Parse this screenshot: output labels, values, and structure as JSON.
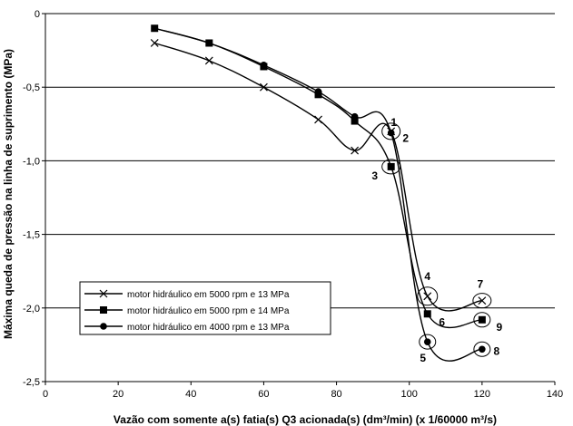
{
  "chart_data": {
    "type": "line",
    "title": "",
    "xlabel": "Vazão com somente a(s) fatia(s) Q3 acionada(s) (dm³/min) (x 1/60000 m³/s)",
    "ylabel": "Máxima queda de pressão na linha de suprimento (MPa)",
    "xlim": [
      0,
      140
    ],
    "ylim": [
      -2.5,
      0
    ],
    "x_ticks": [
      "0",
      "20",
      "40",
      "60",
      "80",
      "100",
      "120",
      "140"
    ],
    "x_tick_values": [
      0,
      20,
      40,
      60,
      80,
      100,
      120,
      140
    ],
    "y_ticks": [
      "0",
      "-0,5",
      "-1,0",
      "-1,5",
      "-2,0",
      "-2,5"
    ],
    "y_tick_values": [
      0,
      -0.5,
      -1.0,
      -1.5,
      -2.0,
      -2.5
    ],
    "grid": "horizontal",
    "legend_position": "lower-left",
    "series": [
      {
        "name": "motor hidráulico em 5000 rpm e 13 MPa",
        "marker": "x",
        "x": [
          30,
          45,
          60,
          75,
          85,
          95,
          105,
          120
        ],
        "y": [
          -0.2,
          -0.32,
          -0.5,
          -0.72,
          -0.93,
          -0.8,
          -1.92,
          -1.95
        ]
      },
      {
        "name": "motor hidráulico em 5000 rpm e 14 MPa",
        "marker": "square",
        "x": [
          30,
          45,
          60,
          75,
          85,
          95,
          105,
          120
        ],
        "y": [
          -0.1,
          -0.2,
          -0.36,
          -0.55,
          -0.73,
          -1.04,
          -2.04,
          -2.08
        ]
      },
      {
        "name": "motor hidráulico em 4000 rpm e 13 MPa",
        "marker": "circle",
        "x": [
          30,
          45,
          60,
          75,
          85,
          95,
          105,
          120
        ],
        "y": [
          -0.1,
          -0.2,
          -0.35,
          -0.53,
          -0.7,
          -0.81,
          -2.23,
          -2.28
        ]
      }
    ],
    "annotations": [
      {
        "label": "1",
        "x": 95,
        "y": -0.8
      },
      {
        "label": "2",
        "x": 95,
        "y": -0.81
      },
      {
        "label": "3",
        "x": 95,
        "y": -1.04
      },
      {
        "label": "4",
        "x": 105,
        "y": -1.92
      },
      {
        "label": "5",
        "x": 105,
        "y": -2.23
      },
      {
        "label": "6",
        "x": 105,
        "y": -2.04
      },
      {
        "label": "7",
        "x": 120,
        "y": -1.95
      },
      {
        "label": "8",
        "x": 120,
        "y": -2.28
      },
      {
        "label": "9",
        "x": 120,
        "y": -2.08
      }
    ]
  }
}
